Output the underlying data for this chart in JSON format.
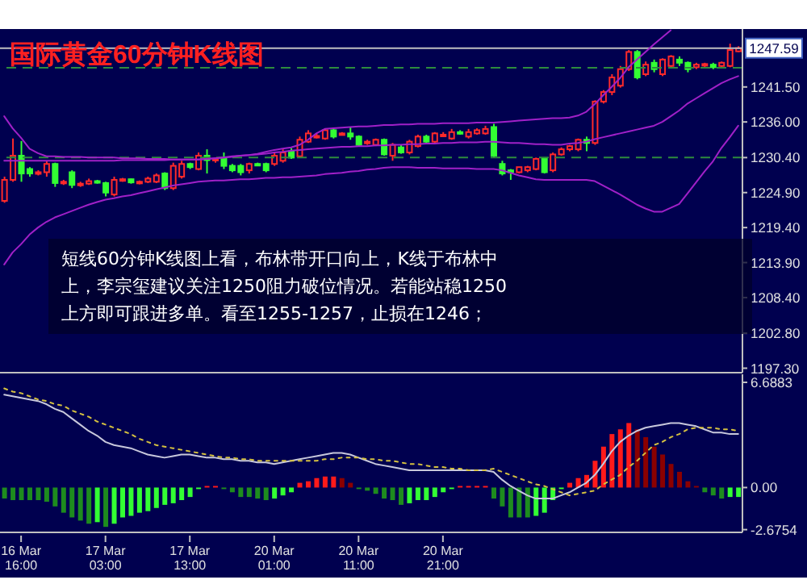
{
  "chart_data": [
    {
      "type": "candlestick",
      "title": "国际黄金60分钟K线图",
      "annotations": [
        "短线60分钟K线图上看，布林带开口向上，K线于布林中",
        "上，李宗玺建议关注1250阻力破位情况。若能站稳1250",
        "上方即可跟进多单。看至1255-1257，止损在1246；"
      ],
      "categories": [
        null,
        null,
        null,
        null,
        null,
        null,
        null,
        null,
        null,
        null,
        null,
        null,
        null,
        null,
        null,
        null,
        null,
        null,
        null,
        null,
        null,
        null,
        null,
        null,
        null,
        null,
        null,
        null,
        null,
        null,
        null,
        null,
        null,
        null,
        null,
        null,
        null,
        null,
        null,
        null,
        null,
        null,
        null,
        null,
        null,
        null,
        null,
        null,
        null,
        null,
        null,
        null,
        null,
        null,
        null,
        null,
        null,
        null,
        null,
        null,
        null,
        null,
        null,
        null,
        null,
        null,
        null,
        null,
        null,
        null,
        null,
        null,
        null,
        null,
        null,
        null,
        null,
        null,
        null,
        null,
        null,
        null,
        null,
        null,
        null,
        null,
        null,
        null
      ],
      "colors": [
        "#ff2a2a",
        "#ff2a2a",
        "#33ff33",
        "#33ff33",
        "#ff2a2a",
        "#ff2a2a",
        "#33ff33",
        "#ff2a2a",
        "#33ff33",
        "#ff2a2a",
        "#ff2a2a",
        "#33ff33",
        "#33ff33",
        "#ff2a2a",
        "#ff2a2a",
        "#33ff33",
        "#ff2a2a",
        "#ff2a2a",
        "#ff2a2a",
        "#33ff33",
        "#ff2a2a",
        "#ff2a2a",
        "#33ff33",
        "#ff2a2a",
        "#33ff33",
        "#ff2a2a",
        "#33ff33",
        "#33ff33",
        "#33ff33",
        "#ff2a2a",
        "#33ff33",
        "#33ff33",
        "#ff2a2a",
        "#ff2a2a",
        "#33ff33",
        "#ff2a2a",
        "#ff2a2a",
        "#ff2a2a",
        "#ff2a2a",
        "#33ff33",
        "#ff2a2a",
        "#33ff33",
        "#33ff33",
        "#ff2a2a",
        "#ff2a2a",
        "#33ff33",
        "#ff2a2a",
        "#33ff33",
        "#ff2a2a",
        "#ff2a2a",
        "#33ff33",
        "#ff2a2a",
        "#ff2a2a",
        "#ff2a2a",
        "#33ff33",
        "#ff2a2a",
        "#ff2a2a",
        "#ff2a2a",
        "#33ff33",
        "#33ff33",
        "#33ff33",
        "#ff2a2a",
        "#ff2a2a",
        "#ff2a2a",
        "#33ff33",
        "#ff2a2a",
        "#ff2a2a",
        "#ff2a2a",
        "#ff2a2a",
        "#33ff33",
        "#ff2a2a",
        "#ff2a2a",
        "#ff2a2a",
        "#ff2a2a",
        "#ff2a2a",
        "#33ff33",
        "#ff2a2a",
        "#33ff33",
        "#ff2a2a",
        "#ff2a2a",
        "#33ff33",
        "#33ff33",
        "#ff2a2a",
        "#ff2a2a",
        "#33ff33",
        "#ff2a2a",
        "#ff2a2a",
        "#ff2a2a"
      ],
      "ohlc": [
        [
          1223.6,
          1227.4,
          1223.3,
          1226.9
        ],
        [
          1226.9,
          1233.4,
          1226.6,
          1230.7
        ],
        [
          1230.7,
          1233.0,
          1226.6,
          1227.9
        ],
        [
          1228.6,
          1228.9,
          1227.4,
          1227.9
        ],
        [
          1227.9,
          1228.4,
          1227.6,
          1228.1
        ],
        [
          1228.1,
          1229.9,
          1227.4,
          1229.4
        ],
        [
          1229.4,
          1229.6,
          1225.8,
          1226.4
        ],
        [
          1226.4,
          1226.9,
          1226.1,
          1226.6
        ],
        [
          1228.1,
          1228.4,
          1225.6,
          1226.1
        ],
        [
          1226.1,
          1226.6,
          1225.8,
          1226.3
        ],
        [
          1226.3,
          1227.1,
          1226.1,
          1226.7
        ],
        [
          1226.7,
          1226.9,
          1226.3,
          1226.5
        ],
        [
          1226.4,
          1226.6,
          1224.3,
          1224.9
        ],
        [
          1224.6,
          1227.4,
          1224.3,
          1226.9
        ],
        [
          1226.9,
          1227.2,
          1226.6,
          1227.0
        ],
        [
          1227.0,
          1227.1,
          1226.3,
          1226.5
        ],
        [
          1226.5,
          1226.8,
          1226.2,
          1226.6
        ],
        [
          1226.6,
          1227.4,
          1226.4,
          1227.1
        ],
        [
          1226.6,
          1227.9,
          1226.4,
          1227.6
        ],
        [
          1227.9,
          1228.1,
          1225.3,
          1225.6
        ],
        [
          1225.6,
          1229.6,
          1225.3,
          1229.1
        ],
        [
          1227.4,
          1229.9,
          1227.1,
          1229.4
        ],
        [
          1229.4,
          1229.6,
          1228.6,
          1228.9
        ],
        [
          1228.6,
          1231.2,
          1228.4,
          1230.7
        ],
        [
          1230.7,
          1231.7,
          1227.9,
          1230.0
        ],
        [
          1230.0,
          1230.4,
          1229.6,
          1230.2
        ],
        [
          1230.4,
          1231.2,
          1228.6,
          1229.1
        ],
        [
          1229.1,
          1229.4,
          1228.1,
          1228.4
        ],
        [
          1229.1,
          1229.4,
          1227.6,
          1228.1
        ],
        [
          1228.4,
          1229.6,
          1227.9,
          1229.4
        ],
        [
          1229.4,
          1229.6,
          1229.1,
          1229.3
        ],
        [
          1229.4,
          1229.6,
          1228.1,
          1228.4
        ],
        [
          1229.4,
          1231.2,
          1229.1,
          1230.7
        ],
        [
          1229.9,
          1231.7,
          1229.6,
          1231.2
        ],
        [
          1231.4,
          1231.9,
          1230.2,
          1230.4
        ],
        [
          1230.6,
          1233.7,
          1230.4,
          1233.2
        ],
        [
          1232.9,
          1234.7,
          1232.7,
          1234.2
        ],
        [
          1233.7,
          1234.2,
          1233.4,
          1233.8
        ],
        [
          1233.4,
          1235.0,
          1233.2,
          1234.7
        ],
        [
          1234.7,
          1235.0,
          1233.4,
          1233.7
        ],
        [
          1234.0,
          1234.4,
          1233.9,
          1234.2
        ],
        [
          1234.2,
          1235.2,
          1233.2,
          1233.7
        ],
        [
          1233.7,
          1233.9,
          1232.2,
          1232.4
        ],
        [
          1232.7,
          1233.2,
          1232.4,
          1232.9
        ],
        [
          1232.4,
          1233.4,
          1232.2,
          1233.2
        ],
        [
          1233.2,
          1233.4,
          1230.7,
          1230.9
        ],
        [
          1230.7,
          1232.7,
          1229.9,
          1232.4
        ],
        [
          1232.0,
          1232.4,
          1231.0,
          1231.2
        ],
        [
          1231.2,
          1233.2,
          1230.9,
          1232.9
        ],
        [
          1232.2,
          1234.0,
          1232.0,
          1233.7
        ],
        [
          1233.7,
          1234.0,
          1232.7,
          1232.9
        ],
        [
          1232.9,
          1234.4,
          1232.7,
          1234.2
        ],
        [
          1233.9,
          1234.4,
          1233.7,
          1234.0
        ],
        [
          1233.4,
          1234.9,
          1233.2,
          1234.4
        ],
        [
          1234.4,
          1234.7,
          1234.0,
          1234.2
        ],
        [
          1233.7,
          1234.9,
          1233.4,
          1234.4
        ],
        [
          1234.2,
          1235.0,
          1234.0,
          1234.7
        ],
        [
          1234.2,
          1235.4,
          1234.0,
          1234.9
        ],
        [
          1235.2,
          1235.7,
          1230.4,
          1230.7
        ],
        [
          1229.4,
          1229.9,
          1227.6,
          1227.9
        ],
        [
          1228.4,
          1228.6,
          1226.9,
          1228.1
        ],
        [
          1228.1,
          1228.9,
          1227.9,
          1228.9
        ],
        [
          1228.4,
          1229.1,
          1228.1,
          1228.9
        ],
        [
          1228.6,
          1230.4,
          1228.4,
          1230.2
        ],
        [
          1230.2,
          1230.4,
          1227.9,
          1228.1
        ],
        [
          1228.4,
          1231.2,
          1228.1,
          1230.9
        ],
        [
          1230.9,
          1232.0,
          1230.7,
          1231.7
        ],
        [
          1231.7,
          1232.4,
          1231.4,
          1232.2
        ],
        [
          1231.7,
          1233.4,
          1231.4,
          1233.2
        ],
        [
          1233.2,
          1233.7,
          1231.4,
          1232.7
        ],
        [
          1232.7,
          1239.4,
          1232.4,
          1239.2
        ],
        [
          1239.2,
          1241.0,
          1238.9,
          1240.7
        ],
        [
          1240.7,
          1243.5,
          1240.2,
          1243.0
        ],
        [
          1241.7,
          1244.8,
          1241.4,
          1244.3
        ],
        [
          1244.3,
          1247.3,
          1244.0,
          1247.0
        ],
        [
          1247.0,
          1247.3,
          1242.7,
          1243.0
        ],
        [
          1243.5,
          1245.5,
          1243.2,
          1245.0
        ],
        [
          1245.3,
          1245.8,
          1243.8,
          1244.3
        ],
        [
          1243.5,
          1246.0,
          1243.2,
          1245.8
        ],
        [
          1244.8,
          1246.5,
          1244.6,
          1246.3
        ],
        [
          1245.8,
          1246.3,
          1244.8,
          1245.3
        ],
        [
          1245.3,
          1245.5,
          1243.8,
          1244.3
        ],
        [
          1244.6,
          1245.3,
          1244.3,
          1245.0
        ],
        [
          1245.0,
          1245.3,
          1244.6,
          1245.1
        ],
        [
          1245.0,
          1245.3,
          1244.3,
          1244.6
        ],
        [
          1244.8,
          1245.5,
          1244.6,
          1245.3
        ],
        [
          1244.8,
          1248.3,
          1244.6,
          1247.3
        ],
        [
          1247.1,
          1247.9,
          1247.0,
          1247.6
        ]
      ],
      "series": [
        {
          "type": "line",
          "color": "#a020c8",
          "values": [
            1236.9,
            1235.0,
            1233.5,
            1231.8,
            1231.1,
            1230.6,
            1230.6,
            1230.5,
            1230.5,
            1230.5,
            1230.4,
            1230.4,
            1230.4,
            1230.4,
            1230.3,
            1230.3,
            1230.3,
            1230.2,
            1230.2,
            1230.2,
            1230.1,
            1230.1,
            1230.1,
            1230.1,
            1230.2,
            1230.3,
            1230.4,
            1230.5,
            1230.7,
            1230.8,
            1231.0,
            1231.3,
            1231.6,
            1231.8,
            1232.0,
            1232.4,
            1233.2,
            1234.2,
            1234.9,
            1235.0,
            1235.1,
            1235.2,
            1235.3,
            1235.3,
            1235.4,
            1235.5,
            1235.5,
            1235.6,
            1235.6,
            1235.7,
            1235.7,
            1235.7,
            1235.8,
            1235.8,
            1235.8,
            1235.8,
            1235.9,
            1235.9,
            1235.9,
            1236.0,
            1236.1,
            1236.2,
            1236.3,
            1236.4,
            1236.5,
            1236.6,
            1236.6,
            1236.7,
            1237.0,
            1237.6,
            1238.8,
            1240.2,
            1241.5,
            1242.9,
            1244.6,
            1245.8,
            1247.0,
            1248.2,
            1249.3,
            1250.4,
            null,
            null,
            null,
            null,
            null,
            null,
            null,
            null
          ]
        },
        {
          "type": "line",
          "color": "#a020c8",
          "values": [
            1229.9,
            1229.9,
            1229.9,
            1229.9,
            1229.9,
            1229.9,
            1229.9,
            1229.9,
            1229.9,
            1229.9,
            1229.9,
            1229.9,
            1229.9,
            1229.9,
            1230.0,
            1230.0,
            1230.0,
            1230.0,
            1230.0,
            1230.0,
            1230.1,
            1230.1,
            1230.1,
            1230.1,
            1230.2,
            1230.3,
            1230.4,
            1230.6,
            1230.7,
            1230.8,
            1230.9,
            1231.0,
            1231.2,
            1231.3,
            1231.5,
            1231.6,
            1231.7,
            1231.8,
            1231.9,
            1232.0,
            1232.1,
            1232.1,
            1232.2,
            1232.2,
            1232.3,
            1232.3,
            1232.4,
            1232.4,
            1232.5,
            1232.5,
            1232.6,
            1232.6,
            1232.7,
            1232.7,
            1232.8,
            1232.8,
            1232.8,
            1232.9,
            1232.9,
            1232.8,
            1232.7,
            1232.7,
            1232.6,
            1232.5,
            1232.5,
            1232.4,
            1232.4,
            1232.6,
            1232.7,
            1232.9,
            1233.3,
            1233.6,
            1233.9,
            1234.2,
            1234.5,
            1234.8,
            1235.1,
            1235.4,
            1236.0,
            1236.9,
            1237.8,
            1238.9,
            1239.7,
            1240.5,
            1241.3,
            1242.1,
            1242.7,
            1243.2
          ]
        },
        {
          "type": "line",
          "color": "#a020c8",
          "values": [
            1213.6,
            1215.5,
            1216.8,
            1218.3,
            1219.4,
            1220.3,
            1221.0,
            1221.5,
            1222.0,
            1222.5,
            1223.0,
            1223.4,
            1223.8,
            1224.0,
            1224.3,
            1224.5,
            1224.8,
            1225.1,
            1225.4,
            1225.7,
            1226.0,
            1226.2,
            1226.4,
            1226.6,
            1226.7,
            1226.8,
            1226.8,
            1226.9,
            1227.0,
            1227.0,
            1227.1,
            1227.2,
            1227.2,
            1227.3,
            1227.3,
            1227.4,
            1227.5,
            1227.6,
            1227.8,
            1227.9,
            1228.0,
            1228.2,
            1228.3,
            1228.5,
            1228.6,
            1228.8,
            1228.9,
            1228.9,
            1228.9,
            1228.8,
            1228.8,
            1228.8,
            1228.7,
            1228.7,
            1228.7,
            1228.7,
            1228.6,
            1228.6,
            1228.6,
            1228.4,
            1228.0,
            1227.6,
            1227.3,
            1227.0,
            1226.9,
            1226.9,
            1226.9,
            1226.9,
            1226.9,
            1226.9,
            1226.7,
            1226.0,
            1225.3,
            1224.6,
            1223.8,
            1223.0,
            1222.4,
            1221.9,
            1221.9,
            1222.5,
            1223.1,
            1224.8,
            1226.5,
            1228.2,
            1229.8,
            1231.9,
            1233.6,
            1235.4
          ]
        }
      ],
      "ylim": [
        1196.6,
        1250.6
      ],
      "yticks": [
        {
          "value": 1197.3,
          "label": "1197.30"
        },
        {
          "value": 1202.8,
          "label": "1202.80"
        },
        {
          "value": 1208.4,
          "label": "1208.40"
        },
        {
          "value": 1213.9,
          "label": "1213.90"
        },
        {
          "value": 1219.4,
          "label": "1219.40"
        },
        {
          "value": 1224.9,
          "label": "1224.90"
        },
        {
          "value": 1230.4,
          "label": "1230.40"
        },
        {
          "value": 1236,
          "label": "1236.00"
        },
        {
          "value": 1241.5,
          "label": "1241.50"
        }
      ],
      "ref_lines": [
        {
          "axis": "y",
          "value": 1247.59,
          "label": "1247.59",
          "color": "#c0c0c0"
        },
        {
          "axis": "y",
          "value": 1244.5,
          "color": "#2e8b3e",
          "line_style": "dashed"
        },
        {
          "axis": "y",
          "value": 1230.4,
          "color": "#2e8b3e",
          "line_style": "dashed"
        }
      ],
      "tick_labels": "y"
    },
    {
      "type": "bar",
      "categories": [
        null,
        null,
        "16 Mar 16:00",
        null,
        null,
        null,
        null,
        null,
        null,
        null,
        null,
        null,
        "17 Mar 03:00",
        null,
        null,
        null,
        null,
        null,
        null,
        null,
        null,
        null,
        "17 Mar 13:00",
        null,
        null,
        null,
        null,
        null,
        null,
        null,
        null,
        null,
        "20 Mar 01:00",
        null,
        null,
        null,
        null,
        null,
        null,
        null,
        null,
        null,
        "20 Mar 11:00",
        null,
        null,
        null,
        null,
        null,
        null,
        null,
        null,
        null,
        "20 Mar 21:00",
        null,
        null,
        null,
        null,
        null,
        null,
        null,
        null,
        null,
        null,
        null,
        null,
        null,
        null,
        null,
        null,
        null,
        null,
        null,
        null,
        null,
        null,
        null,
        null,
        null,
        null,
        null,
        null,
        null,
        null,
        null,
        null,
        null,
        null,
        null
      ],
      "series": [
        {
          "type": "bar",
          "values": [
            -0.7,
            -0.8,
            -0.8,
            -0.8,
            -0.8,
            -0.9,
            -1.2,
            -1.6,
            -1.9,
            -2.1,
            -2.3,
            -2.2,
            -2.5,
            -2.3,
            -1.9,
            -1.8,
            -1.6,
            -1.5,
            -1.3,
            -1.1,
            -1.0,
            -0.8,
            -0.6,
            -0.1,
            0.1,
            0.1,
            -0.1,
            -0.3,
            -0.6,
            -0.6,
            -0.7,
            -0.8,
            -0.7,
            -0.5,
            -0.3,
            0.3,
            0.4,
            0.6,
            0.7,
            0.7,
            0.6,
            0.3,
            -0.1,
            -0.2,
            -0.4,
            -0.7,
            -0.8,
            -1.1,
            -1.0,
            -0.8,
            -0.8,
            -0.6,
            -0.3,
            -0.1,
            0.1,
            0.1,
            0.1,
            0.1,
            -0.7,
            -1.2,
            -1.9,
            -1.9,
            -1.9,
            -1.8,
            -1.6,
            -0.8,
            -0.1,
            0.3,
            0.6,
            0.8,
            1.7,
            2.6,
            3.4,
            3.7,
            4.1,
            3.7,
            3.2,
            2.6,
            2.1,
            1.5,
            1.0,
            0.4,
            0.1,
            -0.3,
            -0.5,
            -0.7,
            -0.6,
            -0.6
          ],
          "colors": [
            "#1e8c1e",
            "#1e8c1e",
            "#1e8c1e",
            "#1e8c1e",
            "#1e8c1e",
            "#1e8c1e",
            "#1e8c1e",
            "#1e8c1e",
            "#1e8c1e",
            "#1e8c1e",
            "#1e8c1e",
            "#33ff33",
            "#1e8c1e",
            "#33ff33",
            "#33ff33",
            "#33ff33",
            "#33ff33",
            "#33ff33",
            "#33ff33",
            "#33ff33",
            "#33ff33",
            "#33ff33",
            "#33ff33",
            "#33ff33",
            "#ff1a1a",
            "#ff1a1a",
            "#1e8c1e",
            "#1e8c1e",
            "#1e8c1e",
            "#1e8c1e",
            "#1e8c1e",
            "#1e8c1e",
            "#33ff33",
            "#33ff33",
            "#33ff33",
            "#ff1a1a",
            "#ff1a1a",
            "#ff1a1a",
            "#ff1a1a",
            "#ff1a1a",
            "#8b0000",
            "#8b0000",
            "#1e8c1e",
            "#1e8c1e",
            "#1e8c1e",
            "#1e8c1e",
            "#1e8c1e",
            "#1e8c1e",
            "#33ff33",
            "#33ff33",
            "#33ff33",
            "#33ff33",
            "#33ff33",
            "#33ff33",
            "#ff1a1a",
            "#ff1a1a",
            "#ff1a1a",
            "#ff1a1a",
            "#1e8c1e",
            "#1e8c1e",
            "#1e8c1e",
            "#1e8c1e",
            "#1e8c1e",
            "#33ff33",
            "#33ff33",
            "#33ff33",
            "#33ff33",
            "#ff1a1a",
            "#ff1a1a",
            "#ff1a1a",
            "#ff1a1a",
            "#ff1a1a",
            "#ff1a1a",
            "#ff1a1a",
            "#ff1a1a",
            "#8b0000",
            "#8b0000",
            "#8b0000",
            "#8b0000",
            "#8b0000",
            "#8b0000",
            "#8b0000",
            "#8b0000",
            "#1e8c1e",
            "#1e8c1e",
            "#1e8c1e",
            "#33ff33",
            "#33ff33"
          ]
        },
        {
          "type": "line",
          "color": "#c8c8dc",
          "values": [
            5.9,
            5.8,
            5.7,
            5.6,
            5.5,
            5.3,
            5.0,
            4.8,
            4.4,
            4.0,
            3.6,
            3.3,
            2.9,
            2.7,
            2.6,
            2.5,
            2.3,
            2.1,
            2.0,
            1.9,
            2.0,
            2.1,
            2.1,
            2.0,
            1.9,
            1.9,
            1.8,
            1.8,
            1.7,
            1.7,
            1.6,
            1.6,
            1.5,
            1.6,
            1.7,
            1.8,
            1.9,
            2.0,
            2.1,
            2.2,
            2.2,
            2.1,
            1.9,
            1.7,
            1.5,
            1.4,
            1.3,
            1.2,
            1.1,
            1.1,
            1.1,
            1.1,
            1.1,
            1.1,
            1.1,
            1.1,
            1.1,
            1.1,
            1.0,
            0.5,
            0.1,
            -0.2,
            -0.5,
            -0.7,
            -0.7,
            -0.7,
            -0.5,
            -0.3,
            0.0,
            0.3,
            0.8,
            1.5,
            2.3,
            2.9,
            3.3,
            3.6,
            3.8,
            3.9,
            4.0,
            4.1,
            4.1,
            4.0,
            3.9,
            3.7,
            3.5,
            3.5,
            3.4,
            3.4
          ]
        },
        {
          "type": "line",
          "color": "#d4c040",
          "line_style": "dotted",
          "values": [
            6.3,
            6.1,
            6.0,
            5.8,
            5.6,
            5.5,
            5.3,
            5.2,
            4.9,
            4.7,
            4.5,
            4.2,
            4.0,
            3.8,
            3.6,
            3.4,
            3.1,
            2.9,
            2.7,
            2.6,
            2.5,
            2.4,
            2.3,
            2.2,
            2.1,
            2.0,
            1.9,
            1.9,
            1.8,
            1.8,
            1.7,
            1.7,
            1.7,
            1.7,
            1.7,
            1.7,
            1.7,
            1.7,
            1.8,
            1.8,
            1.9,
            1.9,
            1.9,
            1.8,
            1.8,
            1.7,
            1.7,
            1.6,
            1.5,
            1.5,
            1.4,
            1.3,
            1.3,
            1.2,
            1.2,
            1.1,
            1.1,
            1.1,
            1.2,
            1.0,
            0.8,
            0.6,
            0.4,
            0.2,
            0.1,
            -0.1,
            -0.3,
            -0.5,
            -0.4,
            -0.3,
            -0.2,
            0.2,
            0.5,
            0.8,
            1.3,
            1.7,
            2.2,
            2.7,
            2.9,
            3.2,
            3.4,
            3.7,
            3.8,
            3.8,
            3.8,
            3.7,
            3.7,
            3.6
          ]
        }
      ],
      "ylim": [
        -2.85,
        7.2
      ],
      "yticks": [
        {
          "value": -2.6754,
          "label": "-2.6754"
        },
        {
          "value": 0,
          "label": "0.00"
        },
        {
          "value": 6.6883,
          "label": "6.6883"
        }
      ]
    }
  ]
}
